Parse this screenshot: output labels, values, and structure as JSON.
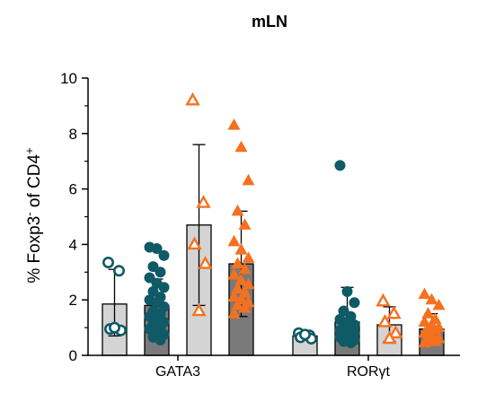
{
  "chart_data": {
    "type": "bar",
    "title": "mLN",
    "xlabel": "",
    "ylabel": "% Foxp3",
    "ylabel_sup_minus": "-",
    "ylabel_rest": " of CD4",
    "ylabel_sup_plus": "+",
    "categories": [
      "GATA3",
      "RORγt"
    ],
    "ylim": [
      0,
      10
    ],
    "yticks": [
      0,
      2,
      4,
      6,
      8,
      10
    ],
    "grid": false,
    "legend": "none",
    "series": [
      {
        "marker": "open-circle",
        "color": "#0f5a66",
        "bar_fill": "#d4d4d4",
        "values": [
          1.85,
          0.7
        ],
        "error_upper": [
          3.1,
          0.85
        ],
        "error_lower": [
          0.7,
          0.55
        ],
        "points": [
          [
            3.35,
            3.05,
            0.95,
            0.9,
            1.0
          ],
          [
            0.8,
            0.72,
            0.65,
            0.6,
            0.75
          ]
        ]
      },
      {
        "marker": "filled-circle",
        "color": "#0f5a66",
        "bar_fill": "#7a7a7a",
        "values": [
          1.8,
          1.2
        ],
        "error_upper": [
          2.75,
          2.45
        ],
        "error_lower": [
          0.9,
          0.4
        ],
        "points": [
          [
            3.9,
            3.85,
            3.6,
            3.2,
            3.0,
            2.8,
            2.6,
            2.45,
            2.3,
            2.1,
            2.0,
            1.9,
            1.75,
            1.6,
            1.5,
            1.4,
            1.3,
            1.2,
            1.1,
            1.0,
            0.95,
            0.85,
            0.75,
            0.65,
            0.55
          ],
          [
            6.85,
            2.3,
            1.9,
            1.6,
            1.4,
            1.3,
            1.2,
            1.1,
            1.0,
            0.95,
            0.9,
            0.85,
            0.8,
            0.75,
            0.7,
            0.65,
            0.6,
            0.55,
            0.5,
            0.45
          ]
        ]
      },
      {
        "marker": "open-triangle",
        "color": "#f5711f",
        "bar_fill": "#d4d4d4",
        "values": [
          4.7,
          1.1
        ],
        "error_upper": [
          7.6,
          1.75
        ],
        "error_lower": [
          1.8,
          0.5
        ],
        "points": [
          [
            9.2,
            5.5,
            4.0,
            3.3,
            1.6
          ],
          [
            1.95,
            1.5,
            1.2,
            0.8,
            0.6
          ]
        ]
      },
      {
        "marker": "filled-triangle",
        "color": "#f5711f",
        "bar_fill": "#7a7a7a",
        "values": [
          3.3,
          0.95
        ],
        "error_upper": [
          5.2,
          1.5
        ],
        "error_lower": [
          1.4,
          0.4
        ],
        "points": [
          [
            8.3,
            7.5,
            6.3,
            5.2,
            4.7,
            4.1,
            3.8,
            3.5,
            3.3,
            3.1,
            2.9,
            2.7,
            2.55,
            2.4,
            2.25,
            2.1,
            2.0,
            1.9,
            1.8,
            1.7,
            1.5
          ],
          [
            2.2,
            2.0,
            1.8,
            1.5,
            1.3,
            1.2,
            1.1,
            1.0,
            0.95,
            0.9,
            0.8,
            0.7,
            0.6,
            0.55,
            0.5,
            0.45
          ]
        ]
      }
    ]
  }
}
